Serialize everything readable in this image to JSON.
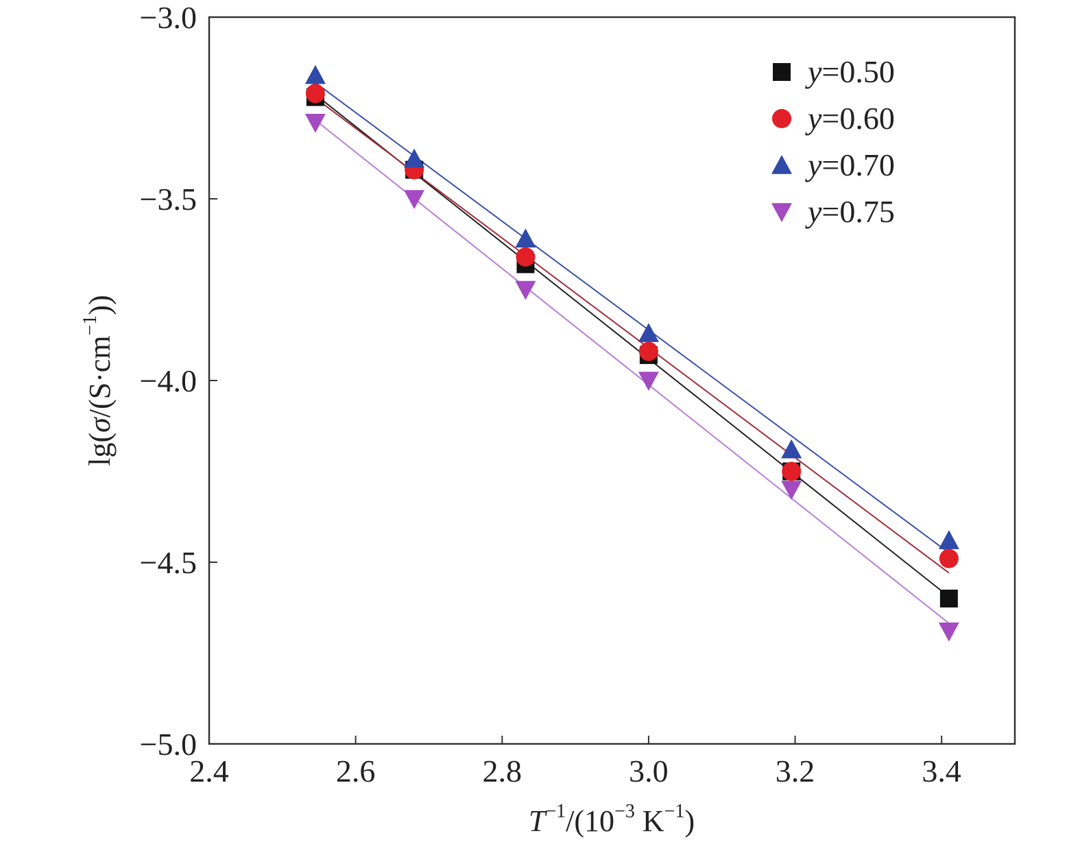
{
  "chart_data": {
    "type": "scatter",
    "xlim": [
      2.4,
      3.5
    ],
    "ylim": [
      -5.0,
      -3.0
    ],
    "x_ticks": [
      2.4,
      2.6,
      2.8,
      3.0,
      3.2,
      3.4
    ],
    "y_ticks": [
      -5.0,
      -4.5,
      -4.0,
      -3.5,
      -3.0
    ],
    "x_tick_labels": [
      "2.4",
      "2.6",
      "2.8",
      "3.0",
      "3.2",
      "3.4"
    ],
    "y_tick_labels": [
      "−5.0",
      "−4.5",
      "−4.0",
      "−3.5",
      "−3.0"
    ],
    "xlabel": {
      "main": "T",
      "sup1": "−1",
      "mid": "/(10",
      "sup2": "−3",
      "mid2": " K",
      "sup3": "−1",
      "end": ")"
    },
    "ylabel": {
      "pre": "lg(",
      "sigma": "σ",
      "mid": "/(S·cm",
      "sup": "−1",
      "end": "))"
    },
    "grid": false,
    "legend_position": "top-right",
    "x": [
      2.545,
      2.68,
      2.832,
      3.0,
      3.195,
      3.41
    ],
    "series": [
      {
        "label_var": "y",
        "label_val": "=0.50",
        "marker": "square",
        "color": "#111111",
        "line_color": "#222222",
        "values": [
          -3.22,
          -3.42,
          -3.68,
          -3.93,
          -4.25,
          -4.6
        ]
      },
      {
        "label_var": "y",
        "label_val": "=0.60",
        "marker": "circle",
        "color": "#e21e26",
        "line_color": "#a0303a",
        "values": [
          -3.21,
          -3.42,
          -3.66,
          -3.92,
          -4.25,
          -4.49
        ]
      },
      {
        "label_var": "y",
        "label_val": "=0.70",
        "marker": "triangle-up",
        "color": "#2f4aa8",
        "line_color": "#3a52a8",
        "values": [
          -3.16,
          -3.39,
          -3.61,
          -3.87,
          -4.19,
          -4.44
        ]
      },
      {
        "label_var": "y",
        "label_val": "=0.75",
        "marker": "triangle-down",
        "color": "#a44bc2",
        "line_color": "#b97fd6",
        "values": [
          -3.29,
          -3.5,
          -3.75,
          -4.0,
          -4.3,
          -4.69
        ]
      }
    ]
  }
}
